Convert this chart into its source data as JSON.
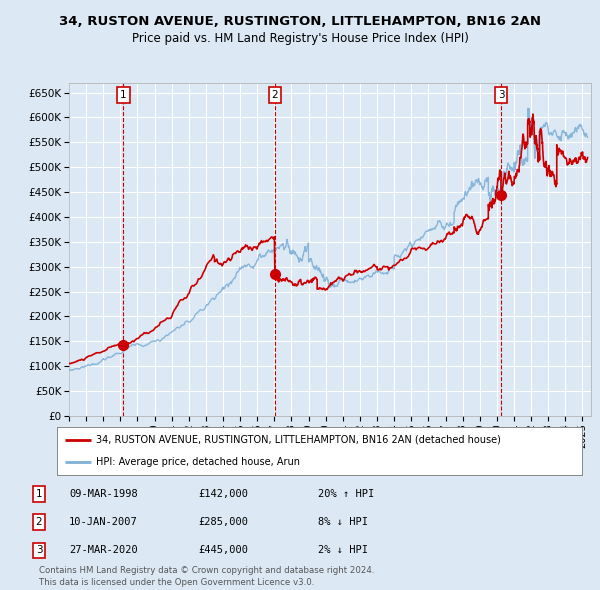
{
  "title_line1": "34, RUSTON AVENUE, RUSTINGTON, LITTLEHAMPTON, BN16 2AN",
  "title_line2": "Price paid vs. HM Land Registry's House Price Index (HPI)",
  "bg_color": "#dce9f5",
  "plot_bg_color": "#dce9f5",
  "grid_color": "#ffffff",
  "red_line_color": "#cc0000",
  "blue_line_color": "#7fb0d8",
  "sale_dot_color": "#cc0000",
  "dashed_line_color": "#cc0000",
  "ylim": [
    0,
    670000
  ],
  "yticks": [
    0,
    50000,
    100000,
    150000,
    200000,
    250000,
    300000,
    350000,
    400000,
    450000,
    500000,
    550000,
    600000,
    650000
  ],
  "ytick_labels": [
    "£0",
    "£50K",
    "£100K",
    "£150K",
    "£200K",
    "£250K",
    "£300K",
    "£350K",
    "£400K",
    "£450K",
    "£500K",
    "£550K",
    "£600K",
    "£650K"
  ],
  "xmin": 1995.0,
  "xmax": 2025.5,
  "sales": [
    {
      "num": 1,
      "date": "09-MAR-1998",
      "price": 142000,
      "hpi_pct": "20%",
      "hpi_dir": "↑",
      "x": 1998.18
    },
    {
      "num": 2,
      "date": "10-JAN-2007",
      "price": 285000,
      "hpi_pct": "8%",
      "hpi_dir": "↓",
      "x": 2007.03
    },
    {
      "num": 3,
      "date": "27-MAR-2020",
      "price": 445000,
      "hpi_pct": "2%",
      "hpi_dir": "↓",
      "x": 2020.24
    }
  ],
  "legend_line1": "34, RUSTON AVENUE, RUSTINGTON, LITTLEHAMPTON, BN16 2AN (detached house)",
  "legend_line2": "HPI: Average price, detached house, Arun",
  "footnote": "Contains HM Land Registry data © Crown copyright and database right 2024.\nThis data is licensed under the Open Government Licence v3.0."
}
